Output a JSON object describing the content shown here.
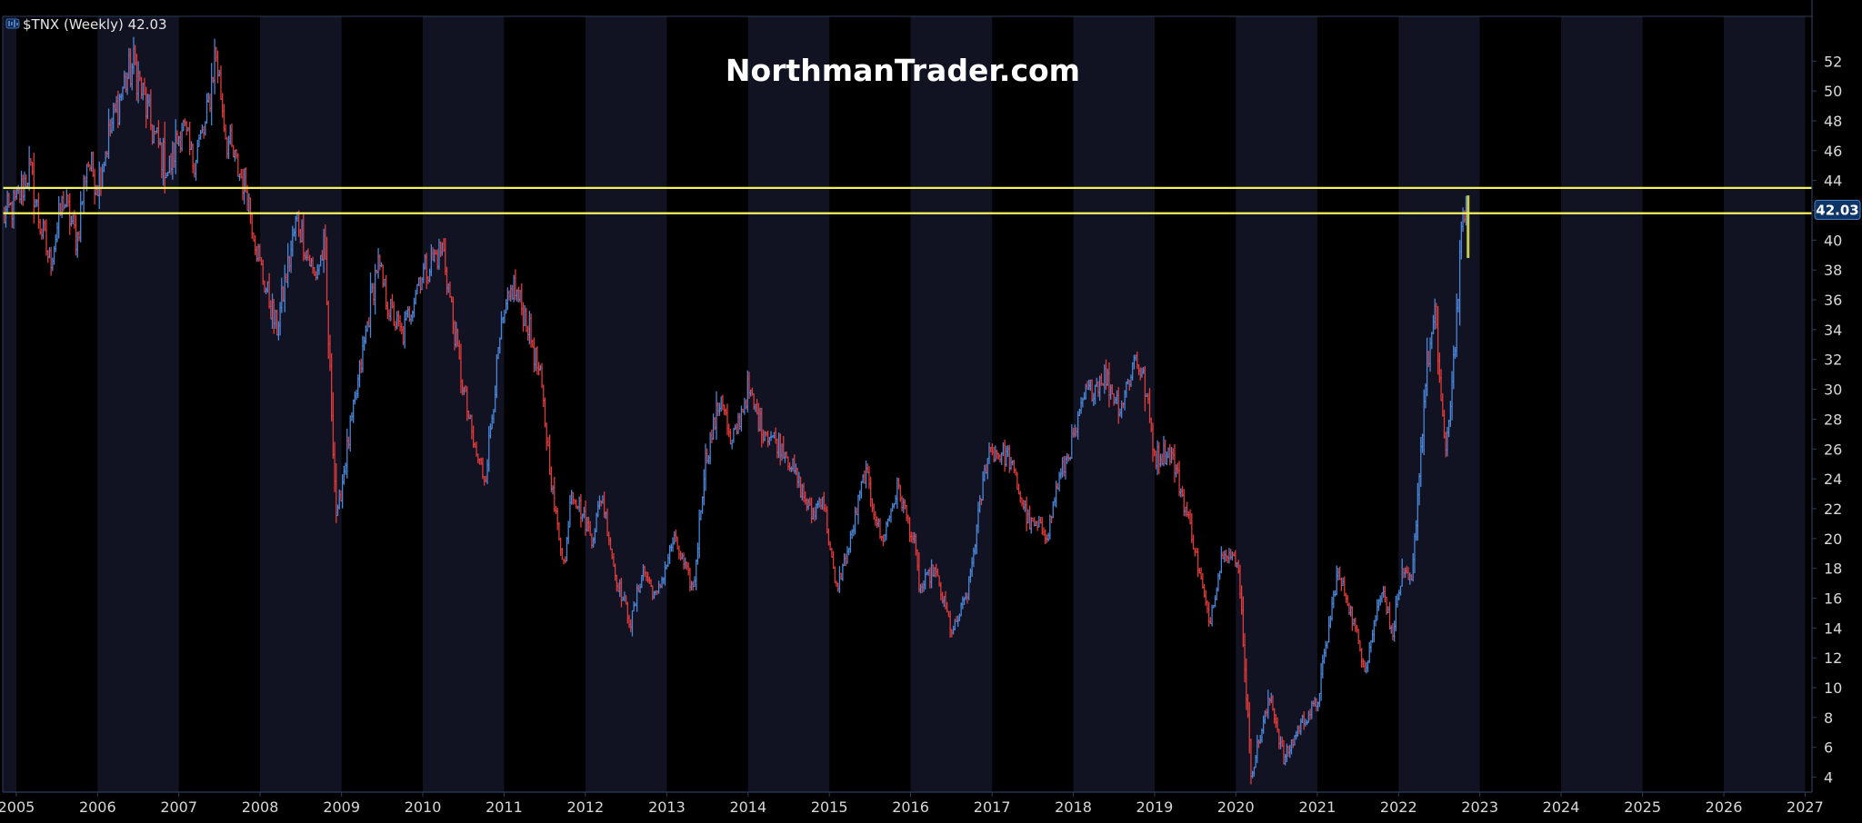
{
  "legend": {
    "ticker_label": "$TNX (Weekly) 42.03"
  },
  "watermark": "NorthmanTrader.com",
  "price_badge": "42.03",
  "colors": {
    "background": "#000000",
    "band_alt": "#111322",
    "up": "#4a86d8",
    "down": "#e03a3a",
    "resistance": "#f3f062",
    "last_bar": "#c9c94a",
    "axis_text": "#d8d8d8",
    "frame": "#2c3d5c",
    "badge_bg": "#0e3566"
  },
  "chart_data": {
    "type": "ohlc",
    "title": "$TNX (Weekly) 42.03",
    "interval": "weekly",
    "xlim": [
      "2004-11-01",
      "2027-02-01"
    ],
    "ylim": [
      3,
      55
    ],
    "x_ticks": [
      "2005",
      "2006",
      "2007",
      "2008",
      "2009",
      "2010",
      "2011",
      "2012",
      "2013",
      "2014",
      "2015",
      "2016",
      "2017",
      "2018",
      "2019",
      "2020",
      "2021",
      "2022",
      "2023",
      "2024",
      "2025",
      "2026",
      "2027"
    ],
    "y_ticks": [
      4,
      6,
      8,
      10,
      12,
      14,
      16,
      18,
      20,
      22,
      24,
      26,
      28,
      30,
      32,
      34,
      36,
      38,
      40,
      42,
      44,
      46,
      48,
      50,
      52
    ],
    "last_value": 42.03,
    "horizontal_lines": [
      43.5,
      41.8
    ],
    "alternating_year_bands": true,
    "series": [
      {
        "points": [
          [
            "2004-11-01",
            41.5
          ],
          [
            "2005-01-01",
            42.5
          ],
          [
            "2005-03-01",
            44.8
          ],
          [
            "2005-04-15",
            41.2
          ],
          [
            "2005-06-01",
            38.5
          ],
          [
            "2005-08-01",
            42.8
          ],
          [
            "2005-10-01",
            40.0
          ],
          [
            "2005-11-15",
            45.5
          ],
          [
            "2006-01-01",
            43.8
          ],
          [
            "2006-03-01",
            47.5
          ],
          [
            "2006-05-01",
            50.5
          ],
          [
            "2006-06-15",
            51.8
          ],
          [
            "2006-09-01",
            47.5
          ],
          [
            "2006-11-15",
            44.6
          ],
          [
            "2007-01-15",
            47.8
          ],
          [
            "2007-03-01",
            45.3
          ],
          [
            "2007-05-01",
            47.5
          ],
          [
            "2007-06-15",
            52.8
          ],
          [
            "2007-08-01",
            47.0
          ],
          [
            "2007-09-15",
            45.0
          ],
          [
            "2007-11-01",
            43.5
          ],
          [
            "2008-01-01",
            38.3
          ],
          [
            "2008-03-15",
            34.0
          ],
          [
            "2008-06-15",
            41.5
          ],
          [
            "2008-09-01",
            37.5
          ],
          [
            "2008-10-15",
            39.5
          ],
          [
            "2008-12-10",
            21.0
          ],
          [
            "2009-01-15",
            25.0
          ],
          [
            "2009-03-01",
            29.0
          ],
          [
            "2009-06-10",
            38.5
          ],
          [
            "2009-08-01",
            35.5
          ],
          [
            "2009-10-01",
            33.5
          ],
          [
            "2009-12-15",
            37.5
          ],
          [
            "2010-04-01",
            39.5
          ],
          [
            "2010-06-15",
            31.5
          ],
          [
            "2010-08-20",
            26.0
          ],
          [
            "2010-10-08",
            24.0
          ],
          [
            "2010-12-15",
            33.5
          ],
          [
            "2011-02-10",
            37.0
          ],
          [
            "2011-04-15",
            34.5
          ],
          [
            "2011-06-15",
            30.5
          ],
          [
            "2011-08-15",
            22.0
          ],
          [
            "2011-10-01",
            18.0
          ],
          [
            "2011-10-28",
            23.5
          ],
          [
            "2012-02-01",
            20.0
          ],
          [
            "2012-03-15",
            23.0
          ],
          [
            "2012-05-15",
            17.5
          ],
          [
            "2012-07-24",
            14.3
          ],
          [
            "2012-09-15",
            18.0
          ],
          [
            "2012-11-15",
            16.0
          ],
          [
            "2013-02-01",
            20.0
          ],
          [
            "2013-05-01",
            16.5
          ],
          [
            "2013-06-20",
            25.0
          ],
          [
            "2013-09-05",
            29.8
          ],
          [
            "2013-10-15",
            26.0
          ],
          [
            "2013-12-31",
            30.0
          ],
          [
            "2014-03-01",
            27.5
          ],
          [
            "2014-06-15",
            26.0
          ],
          [
            "2014-10-15",
            21.5
          ],
          [
            "2014-12-01",
            23.0
          ],
          [
            "2015-01-30",
            16.5
          ],
          [
            "2015-04-01",
            19.5
          ],
          [
            "2015-06-10",
            24.5
          ],
          [
            "2015-08-25",
            19.8
          ],
          [
            "2015-11-05",
            23.5
          ],
          [
            "2016-01-20",
            19.5
          ],
          [
            "2016-02-11",
            16.5
          ],
          [
            "2016-04-15",
            18.0
          ],
          [
            "2016-07-08",
            13.6
          ],
          [
            "2016-09-15",
            16.5
          ],
          [
            "2016-11-15",
            23.0
          ],
          [
            "2016-12-15",
            26.0
          ],
          [
            "2017-03-15",
            25.5
          ],
          [
            "2017-06-15",
            21.0
          ],
          [
            "2017-09-08",
            20.4
          ],
          [
            "2017-10-20",
            23.5
          ],
          [
            "2018-01-20",
            27.5
          ],
          [
            "2018-02-21",
            29.5
          ],
          [
            "2018-05-17",
            31.0
          ],
          [
            "2018-08-01",
            28.8
          ],
          [
            "2018-10-08",
            32.3
          ],
          [
            "2018-11-15",
            30.5
          ],
          [
            "2019-01-03",
            25.5
          ],
          [
            "2019-03-15",
            25.8
          ],
          [
            "2019-06-15",
            20.5
          ],
          [
            "2019-09-03",
            14.3
          ],
          [
            "2019-11-08",
            19.5
          ],
          [
            "2020-01-15",
            18.0
          ],
          [
            "2020-03-09",
            4.3
          ],
          [
            "2020-06-05",
            9.5
          ],
          [
            "2020-08-04",
            5.1
          ],
          [
            "2020-10-15",
            7.5
          ],
          [
            "2021-01-01",
            9.0
          ],
          [
            "2021-03-31",
            17.6
          ],
          [
            "2021-05-15",
            16.0
          ],
          [
            "2021-08-04",
            11.3
          ],
          [
            "2021-10-21",
            17.0
          ],
          [
            "2021-12-01",
            13.5
          ],
          [
            "2022-01-15",
            17.5
          ],
          [
            "2022-03-01",
            17.0
          ],
          [
            "2022-05-06",
            31.5
          ],
          [
            "2022-06-14",
            34.8
          ],
          [
            "2022-08-01",
            25.3
          ],
          [
            "2022-09-15",
            34.0
          ],
          [
            "2022-10-21",
            42.5
          ],
          [
            "2022-11-01",
            42.03
          ]
        ]
      }
    ]
  }
}
